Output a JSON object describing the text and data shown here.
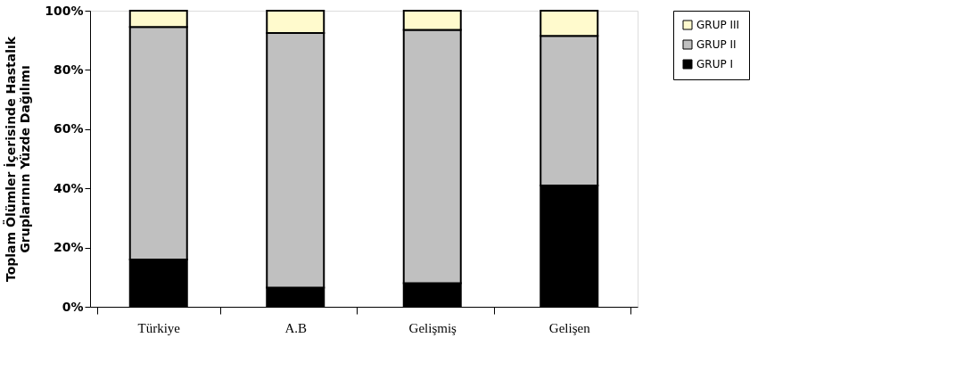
{
  "chart_data": {
    "type": "bar",
    "stacked": true,
    "ylabel": "Toplam Ölümler İçerisinde Hastalık\nGruplarının Yüzde Dağılımı",
    "categories": [
      "Türkiye",
      "A.B",
      "Gelişmiş",
      "Gelişen"
    ],
    "series": [
      {
        "name": "GRUP I",
        "color": "#000000",
        "values": [
          16,
          6.5,
          8,
          41
        ]
      },
      {
        "name": "GRUP II",
        "color": "#c0c0c0",
        "values": [
          78.5,
          86,
          85.5,
          50.5
        ]
      },
      {
        "name": "GRUP III",
        "color": "#fffacd",
        "values": [
          5.5,
          7.5,
          6.5,
          8.5
        ]
      }
    ],
    "ylim": [
      0,
      100
    ],
    "yticks": [
      {
        "value": 0,
        "label": "0%"
      },
      {
        "value": 20,
        "label": "20%"
      },
      {
        "value": 40,
        "label": "40%"
      },
      {
        "value": 60,
        "label": "60%"
      },
      {
        "value": 80,
        "label": "80%"
      },
      {
        "value": 100,
        "label": "100%"
      }
    ],
    "grid": false,
    "legend": "right"
  }
}
